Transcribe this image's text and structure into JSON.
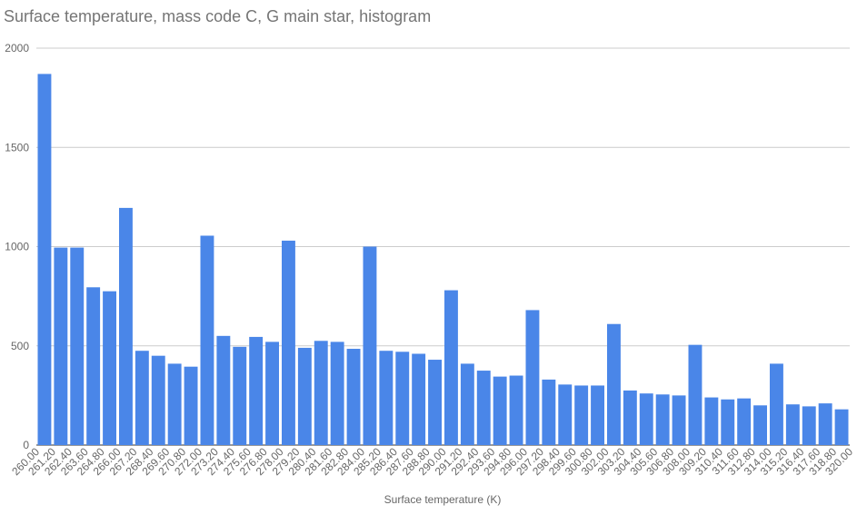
{
  "chart_data": {
    "type": "histogram",
    "title": "Surface temperature, mass code C, G main star, histogram",
    "x_label": "Surface temperature (K)",
    "bins": [
      {
        "value": 260,
        "label": "260.00"
      },
      {
        "value": 261.2,
        "label": "261.20"
      },
      {
        "value": 262.4,
        "label": "262.40"
      },
      {
        "value": 263.6,
        "label": "263.60"
      },
      {
        "value": 264.8,
        "label": "264.80"
      },
      {
        "value": 266,
        "label": "266.00"
      },
      {
        "value": 267.2,
        "label": "267.20"
      },
      {
        "value": 268.4,
        "label": "268.40"
      },
      {
        "value": 269.6,
        "label": "269.60"
      },
      {
        "value": 270.8,
        "label": "270.80"
      },
      {
        "value": 272,
        "label": "272.00"
      },
      {
        "value": 273.2,
        "label": "273.20"
      },
      {
        "value": 274.4,
        "label": "274.40"
      },
      {
        "value": 275.6,
        "label": "275.60"
      },
      {
        "value": 276.8,
        "label": "276.80"
      },
      {
        "value": 278,
        "label": "278.00"
      },
      {
        "value": 279.2,
        "label": "279.20"
      },
      {
        "value": 280.4,
        "label": "280.40"
      },
      {
        "value": 281.6,
        "label": "281.60"
      },
      {
        "value": 282.8,
        "label": "282.80"
      },
      {
        "value": 284,
        "label": "284.00"
      },
      {
        "value": 285.2,
        "label": "285.20"
      },
      {
        "value": 286.4,
        "label": "286.40"
      },
      {
        "value": 287.6,
        "label": "287.60"
      },
      {
        "value": 288.8,
        "label": "288.80"
      },
      {
        "value": 290,
        "label": "290.00"
      },
      {
        "value": 291.2,
        "label": "291.20"
      },
      {
        "value": 292.4,
        "label": "292.40"
      },
      {
        "value": 293.6,
        "label": "293.60"
      },
      {
        "value": 294.8,
        "label": "294.80"
      },
      {
        "value": 296,
        "label": "296.00"
      },
      {
        "value": 297.2,
        "label": "297.20"
      },
      {
        "value": 298.4,
        "label": "298.40"
      },
      {
        "value": 299.6,
        "label": "299.60"
      },
      {
        "value": 300.8,
        "label": "300.80"
      },
      {
        "value": 302,
        "label": "302.00"
      },
      {
        "value": 303.2,
        "label": "303.20"
      },
      {
        "value": 304.4,
        "label": "304.40"
      },
      {
        "value": 305.6,
        "label": "305.60"
      },
      {
        "value": 306.8,
        "label": "306.80"
      },
      {
        "value": 308,
        "label": "308.00"
      },
      {
        "value": 309.2,
        "label": "309.20"
      },
      {
        "value": 310.4,
        "label": "310.40"
      },
      {
        "value": 311.6,
        "label": "311.60"
      },
      {
        "value": 312.8,
        "label": "312.80"
      },
      {
        "value": 314,
        "label": "314.00"
      },
      {
        "value": 315.2,
        "label": "315.20"
      },
      {
        "value": 316.4,
        "label": "316.40"
      },
      {
        "value": 317.6,
        "label": "317.60"
      },
      {
        "value": 318.8,
        "label": "318.80"
      },
      {
        "value": 320,
        "label": "320.00"
      }
    ],
    "values": [
      1870,
      995,
      995,
      795,
      775,
      1195,
      475,
      450,
      410,
      395,
      1055,
      550,
      495,
      545,
      520,
      1030,
      490,
      525,
      520,
      485,
      1000,
      475,
      470,
      460,
      430,
      780,
      410,
      375,
      345,
      350,
      680,
      330,
      305,
      300,
      300,
      610,
      275,
      260,
      255,
      250,
      505,
      240,
      230,
      235,
      200,
      410,
      205,
      195,
      210,
      180
    ],
    "color": "#4a86e8",
    "xlim": [
      260,
      320
    ],
    "ylim": [
      0,
      2000
    ],
    "yticks": [
      0,
      500,
      1000,
      1500,
      2000
    ],
    "grid": true
  }
}
